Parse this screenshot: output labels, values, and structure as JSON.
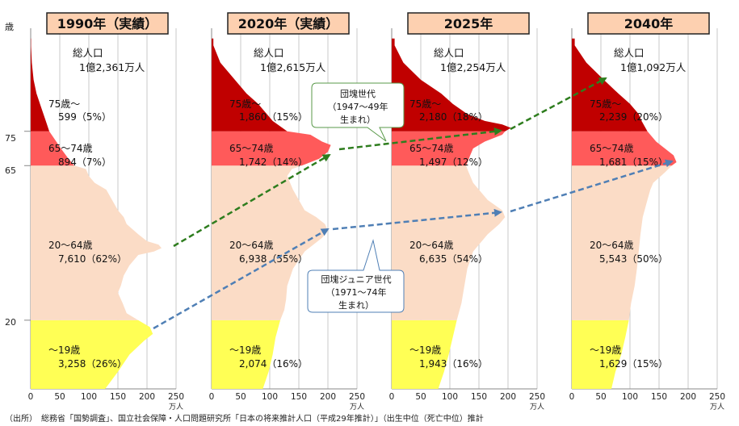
{
  "axis_unit_top": "歳",
  "age_tick_labels": [
    "75",
    "65",
    "20"
  ],
  "x_tick_labels": [
    "0",
    "50",
    "100",
    "150",
    "200",
    "250"
  ],
  "x_unit": "万人",
  "colors": {
    "age75plus": "#c00000",
    "age65to74": "#ff5a5a",
    "age20to64": "#fbdcc6",
    "age0to19": "#ffff55",
    "title_bg": "#fdd0b0",
    "dantai_arrow": "#2e7d1e",
    "junior_arrow": "#4f7fb5"
  },
  "callouts": {
    "dankai": {
      "line1": "団塊世代",
      "line2": "（1947～49年",
      "line3": "生まれ）"
    },
    "junior": {
      "line1": "団塊ジュニア世代",
      "line2": "（1971～74年",
      "line3": "生まれ）"
    }
  },
  "source": "（出所）　総務省「国勢調査」、国立社会保障・人口問題研究所「日本の将来推計人口（平成29年推計）」（出生中位（死亡中位）推計",
  "chart_data": [
    {
      "type": "area",
      "title": "1990年（実績）",
      "total_label": "総人口",
      "total_value": "1億2,361万人",
      "x_range": [
        0,
        250
      ],
      "x_unit": "万人",
      "age_range": [
        0,
        105
      ],
      "groups": [
        {
          "name": "75歳～",
          "value": "599（5%）"
        },
        {
          "name": "65～74歳",
          "value": "894（7%）"
        },
        {
          "name": "20～64歳",
          "value": "7,610（62%）"
        },
        {
          "name": "～19歳",
          "value": "3,258（26%）"
        }
      ],
      "profile": [
        [
          0,
          128
        ],
        [
          5,
          150
        ],
        [
          10,
          170
        ],
        [
          14,
          195
        ],
        [
          16,
          210
        ],
        [
          18,
          205
        ],
        [
          20,
          185
        ],
        [
          22,
          165
        ],
        [
          25,
          158
        ],
        [
          28,
          150
        ],
        [
          30,
          155
        ],
        [
          33,
          160
        ],
        [
          36,
          170
        ],
        [
          39,
          185
        ],
        [
          40,
          212
        ],
        [
          41,
          225
        ],
        [
          42,
          220
        ],
        [
          43,
          200
        ],
        [
          45,
          185
        ],
        [
          48,
          165
        ],
        [
          50,
          160
        ],
        [
          52,
          150
        ],
        [
          55,
          140
        ],
        [
          58,
          130
        ],
        [
          60,
          110
        ],
        [
          62,
          100
        ],
        [
          64,
          95
        ],
        [
          65,
          75
        ],
        [
          67,
          65
        ],
        [
          70,
          52
        ],
        [
          73,
          40
        ],
        [
          75,
          32
        ],
        [
          78,
          26
        ],
        [
          80,
          22
        ],
        [
          83,
          16
        ],
        [
          86,
          10
        ],
        [
          90,
          5
        ],
        [
          95,
          2
        ],
        [
          100,
          0.5
        ]
      ]
    },
    {
      "type": "area",
      "title": "2020年（実績）",
      "total_label": "総人口",
      "total_value": "1億2,615万人",
      "x_range": [
        0,
        250
      ],
      "x_unit": "万人",
      "age_range": [
        0,
        105
      ],
      "groups": [
        {
          "name": "75歳～",
          "value": "1,860（15%）"
        },
        {
          "name": "65～74歳",
          "value": "1,742（14%）"
        },
        {
          "name": "20～64歳",
          "value": "6,938（55%）"
        },
        {
          "name": "～19歳",
          "value": "2,074（16%）"
        }
      ],
      "profile": [
        [
          0,
          88
        ],
        [
          5,
          98
        ],
        [
          10,
          105
        ],
        [
          15,
          110
        ],
        [
          20,
          118
        ],
        [
          23,
          125
        ],
        [
          26,
          128
        ],
        [
          30,
          130
        ],
        [
          35,
          140
        ],
        [
          40,
          160
        ],
        [
          44,
          190
        ],
        [
          46,
          200
        ],
        [
          48,
          195
        ],
        [
          50,
          180
        ],
        [
          52,
          160
        ],
        [
          55,
          150
        ],
        [
          58,
          140
        ],
        [
          60,
          135
        ],
        [
          62,
          130
        ],
        [
          64,
          138
        ],
        [
          65,
          155
        ],
        [
          67,
          185
        ],
        [
          69,
          200
        ],
        [
          71,
          205
        ],
        [
          72,
          190
        ],
        [
          74,
          170
        ],
        [
          75,
          130
        ],
        [
          78,
          105
        ],
        [
          80,
          95
        ],
        [
          83,
          80
        ],
        [
          86,
          60
        ],
        [
          90,
          40
        ],
        [
          95,
          15
        ],
        [
          100,
          3
        ]
      ]
    },
    {
      "type": "area",
      "title": "2025年",
      "total_label": "総人口",
      "total_value": "1億2,254万人",
      "x_range": [
        0,
        250
      ],
      "x_unit": "万人",
      "age_range": [
        0,
        105
      ],
      "groups": [
        {
          "name": "75歳～",
          "value": "2,180（18%）"
        },
        {
          "name": "65～74歳",
          "value": "1,497（12%）"
        },
        {
          "name": "20～64歳",
          "value": "6,635（54%）"
        },
        {
          "name": "～19歳",
          "value": "1,943（16%）"
        }
      ],
      "profile": [
        [
          0,
          80
        ],
        [
          5,
          90
        ],
        [
          10,
          98
        ],
        [
          15,
          105
        ],
        [
          20,
          112
        ],
        [
          25,
          120
        ],
        [
          30,
          125
        ],
        [
          35,
          130
        ],
        [
          40,
          140
        ],
        [
          45,
          165
        ],
        [
          48,
          185
        ],
        [
          50,
          195
        ],
        [
          52,
          190
        ],
        [
          55,
          165
        ],
        [
          58,
          150
        ],
        [
          60,
          140
        ],
        [
          62,
          135
        ],
        [
          64,
          130
        ],
        [
          65,
          128
        ],
        [
          68,
          135
        ],
        [
          70,
          140
        ],
        [
          72,
          160
        ],
        [
          74,
          190
        ],
        [
          75,
          195
        ],
        [
          76,
          205
        ],
        [
          77,
          190
        ],
        [
          78,
          160
        ],
        [
          80,
          130
        ],
        [
          83,
          105
        ],
        [
          86,
          85
        ],
        [
          90,
          50
        ],
        [
          95,
          20
        ],
        [
          100,
          5
        ]
      ]
    },
    {
      "type": "area",
      "title": "2040年",
      "total_label": "総人口",
      "total_value": "1億1,092万人",
      "x_range": [
        0,
        250
      ],
      "x_unit": "万人",
      "age_range": [
        0,
        105
      ],
      "groups": [
        {
          "name": "75歳～",
          "value": "2,239（20%）"
        },
        {
          "name": "65～74歳",
          "value": "1,681（15%）"
        },
        {
          "name": "20～64歳",
          "value": "5,543（50%）"
        },
        {
          "name": "～19歳",
          "value": "1,629（15%）"
        }
      ],
      "profile": [
        [
          0,
          68
        ],
        [
          5,
          75
        ],
        [
          10,
          85
        ],
        [
          15,
          92
        ],
        [
          20,
          98
        ],
        [
          25,
          102
        ],
        [
          30,
          108
        ],
        [
          35,
          112
        ],
        [
          40,
          115
        ],
        [
          45,
          118
        ],
        [
          50,
          122
        ],
        [
          55,
          130
        ],
        [
          58,
          135
        ],
        [
          60,
          140
        ],
        [
          63,
          160
        ],
        [
          65,
          172
        ],
        [
          66,
          180
        ],
        [
          68,
          175
        ],
        [
          70,
          160
        ],
        [
          72,
          145
        ],
        [
          75,
          130
        ],
        [
          78,
          120
        ],
        [
          80,
          115
        ],
        [
          83,
          100
        ],
        [
          86,
          80
        ],
        [
          90,
          55
        ],
        [
          95,
          25
        ],
        [
          100,
          5
        ]
      ]
    }
  ]
}
